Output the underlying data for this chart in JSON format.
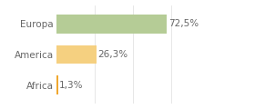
{
  "categories": [
    "Europa",
    "America",
    "Africa"
  ],
  "values": [
    72.5,
    26.3,
    1.3
  ],
  "labels": [
    "72,5%",
    "26,3%",
    "1,3%"
  ],
  "bar_colors": [
    "#b5cc96",
    "#f5d080",
    "#f0a830"
  ],
  "background_color": "#ffffff",
  "text_color": "#666666",
  "label_fontsize": 7.5,
  "tick_fontsize": 7.5,
  "xlim": [
    0,
    100
  ],
  "bar_height": 0.62,
  "figsize": [
    2.8,
    1.2
  ],
  "dpi": 100
}
